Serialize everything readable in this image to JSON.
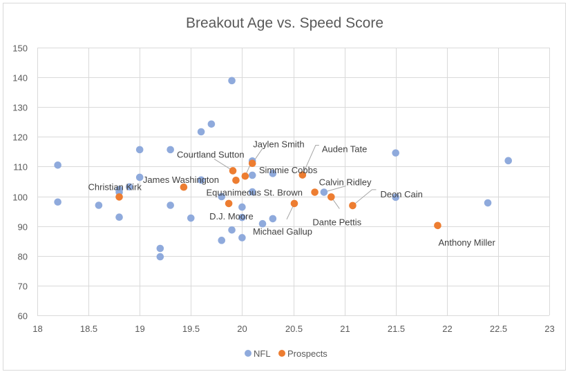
{
  "chart_data": {
    "type": "scatter",
    "title": "Breakout Age vs. Speed Score",
    "xlabel": "",
    "ylabel": "",
    "xlim": [
      18,
      23
    ],
    "ylim": [
      60,
      150
    ],
    "x_ticks": [
      "18",
      "18.5",
      "19",
      "19.5",
      "20",
      "20.5",
      "21",
      "21.5",
      "22",
      "22.5",
      "23"
    ],
    "x_tick_values": [
      18,
      18.5,
      19,
      19.5,
      20,
      20.5,
      21,
      21.5,
      22,
      22.5,
      23
    ],
    "y_ticks": [
      "60",
      "70",
      "80",
      "90",
      "100",
      "110",
      "120",
      "130",
      "140",
      "150"
    ],
    "y_tick_values": [
      60,
      70,
      80,
      90,
      100,
      110,
      120,
      130,
      140,
      150
    ],
    "grid": true,
    "legend_position": "bottom",
    "series": [
      {
        "name": "NFL",
        "color": "#8faadc",
        "points": [
          {
            "x": 18.2,
            "y": 110.5
          },
          {
            "x": 18.2,
            "y": 98.1
          },
          {
            "x": 18.6,
            "y": 97.0
          },
          {
            "x": 18.8,
            "y": 102.3
          },
          {
            "x": 18.8,
            "y": 101.4
          },
          {
            "x": 18.8,
            "y": 93.0
          },
          {
            "x": 18.9,
            "y": 103.2
          },
          {
            "x": 19.0,
            "y": 115.7
          },
          {
            "x": 19.0,
            "y": 106.4
          },
          {
            "x": 19.2,
            "y": 82.5
          },
          {
            "x": 19.2,
            "y": 79.7
          },
          {
            "x": 19.3,
            "y": 115.7
          },
          {
            "x": 19.3,
            "y": 97.0
          },
          {
            "x": 19.5,
            "y": 92.7
          },
          {
            "x": 19.6,
            "y": 121.7
          },
          {
            "x": 19.6,
            "y": 105.5
          },
          {
            "x": 19.7,
            "y": 124.3
          },
          {
            "x": 19.8,
            "y": 99.9
          },
          {
            "x": 19.8,
            "y": 85.2
          },
          {
            "x": 19.9,
            "y": 138.9
          },
          {
            "x": 19.9,
            "y": 88.7
          },
          {
            "x": 20.0,
            "y": 96.4
          },
          {
            "x": 20.0,
            "y": 92.9
          },
          {
            "x": 20.0,
            "y": 86.1
          },
          {
            "x": 20.1,
            "y": 111.9
          },
          {
            "x": 20.1,
            "y": 107.1
          },
          {
            "x": 20.1,
            "y": 101.5
          },
          {
            "x": 20.2,
            "y": 90.8
          },
          {
            "x": 20.3,
            "y": 107.7
          },
          {
            "x": 20.3,
            "y": 92.5
          },
          {
            "x": 20.8,
            "y": 101.4
          },
          {
            "x": 21.5,
            "y": 114.6
          },
          {
            "x": 21.5,
            "y": 99.7
          },
          {
            "x": 22.4,
            "y": 97.8
          },
          {
            "x": 22.6,
            "y": 112.0
          }
        ]
      },
      {
        "name": "Prospects",
        "color": "#ed7d31",
        "points": [
          {
            "x": 18.8,
            "y": 99.8,
            "label": "Christian Kirk"
          },
          {
            "x": 19.43,
            "y": 103.1,
            "label": "James Washington"
          },
          {
            "x": 19.91,
            "y": 108.6,
            "label": "Courtland Sutton"
          },
          {
            "x": 20.1,
            "y": 111.1,
            "label": "Jaylen Smith"
          },
          {
            "x": 20.03,
            "y": 106.8,
            "label": "Simmie Cobbs"
          },
          {
            "x": 19.94,
            "y": 105.4,
            "label": "Equanimeous St. Brown"
          },
          {
            "x": 20.59,
            "y": 107.2,
            "label": "Auden Tate"
          },
          {
            "x": 20.71,
            "y": 101.4,
            "label": "Calvin Ridley"
          },
          {
            "x": 21.08,
            "y": 96.9,
            "label": "Deon Cain"
          },
          {
            "x": 20.87,
            "y": 99.8,
            "label": "Dante Pettis"
          },
          {
            "x": 19.87,
            "y": 97.6,
            "label": "D.J. Moore"
          },
          {
            "x": 20.51,
            "y": 97.6,
            "label": "Michael Gallup"
          },
          {
            "x": 21.91,
            "y": 90.2,
            "label": "Anthony Miller"
          }
        ]
      }
    ]
  }
}
